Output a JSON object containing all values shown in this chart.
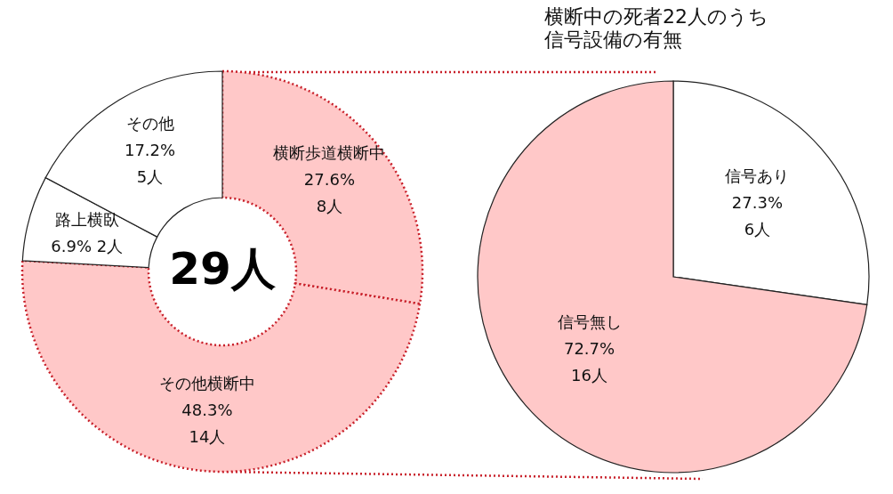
{
  "chart_data": [
    {
      "type": "donut",
      "categories": [
        "横断歩道横断中",
        "その他横断中",
        "路上横臥",
        "その他"
      ],
      "values": [
        8,
        14,
        2,
        5
      ],
      "colors": [
        "#ffc8c8",
        "#ffc8c8",
        "#ffffff",
        "#ffffff"
      ],
      "value_labels": [
        "27.6%\n8人",
        "48.3%\n14人",
        "6.9% 2人",
        "17.2%\n5人"
      ],
      "annotations": [
        "29人"
      ]
    },
    {
      "type": "pie",
      "title": "横断中の死者22人のうち信号設備の有無",
      "categories": [
        "信号あり",
        "信号無し"
      ],
      "values": [
        6,
        16
      ],
      "colors": [
        "#ffffff",
        "#ffc8c8"
      ],
      "value_labels": [
        "27.3%\n6人",
        "72.7%\n16人"
      ]
    }
  ]
}
